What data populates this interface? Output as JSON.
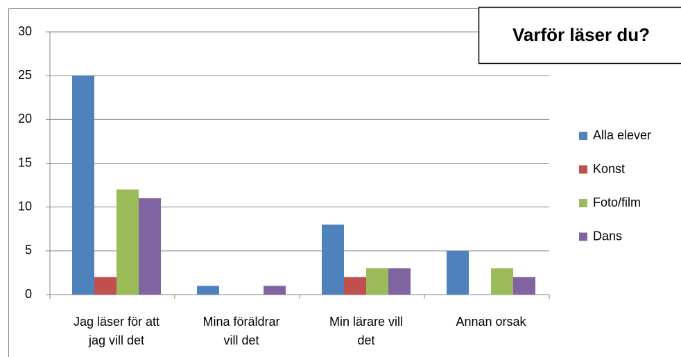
{
  "chart_data": {
    "type": "bar",
    "title": "Varför läser du?",
    "categories": [
      "Jag läser för att jag vill det",
      "Mina föräldrar vill det",
      "Min lärare vill det",
      "Annan orsak"
    ],
    "series": [
      {
        "name": "Alla elever",
        "color": "#4f81bd",
        "values": [
          25,
          1,
          8,
          5
        ]
      },
      {
        "name": "Konst",
        "color": "#c0504d",
        "values": [
          2,
          0,
          2,
          0
        ]
      },
      {
        "name": "Foto/film",
        "color": "#9bbb59",
        "values": [
          12,
          0,
          3,
          3
        ]
      },
      {
        "name": "Dans",
        "color": "#8064a2",
        "values": [
          11,
          1,
          3,
          2
        ]
      }
    ],
    "ylim": [
      0,
      30
    ],
    "yticks": [
      0,
      5,
      10,
      15,
      20,
      25,
      30
    ],
    "grid": true,
    "legend": "right"
  }
}
